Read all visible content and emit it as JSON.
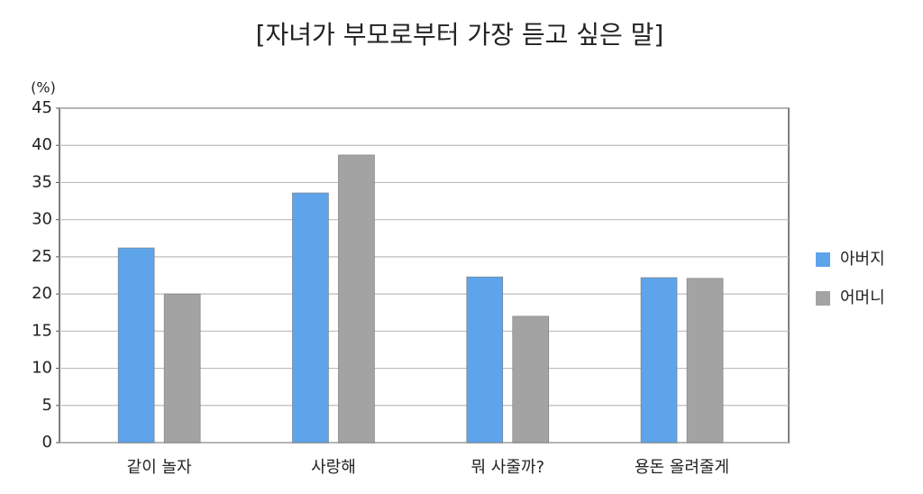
{
  "chart_data": {
    "type": "bar",
    "title": "[자녀가 부모로부터 가장 듣고 싶은 말]",
    "y_label": "(%)",
    "categories": [
      "같이 놀자",
      "사랑해",
      "뭐 사줄까?",
      "용돈 올려줄게"
    ],
    "series": [
      {
        "name": "아버지",
        "color": "#5ea4ea",
        "values": [
          26.2,
          33.6,
          22.3,
          22.2
        ]
      },
      {
        "name": "어머니",
        "color": "#a3a3a3",
        "values": [
          20,
          38.7,
          17,
          22.1
        ]
      }
    ],
    "ylim": [
      0,
      45
    ],
    "yticks": [
      0,
      5,
      10,
      15,
      20,
      25,
      30,
      35,
      40,
      45
    ],
    "grid": true,
    "legend": "right"
  }
}
